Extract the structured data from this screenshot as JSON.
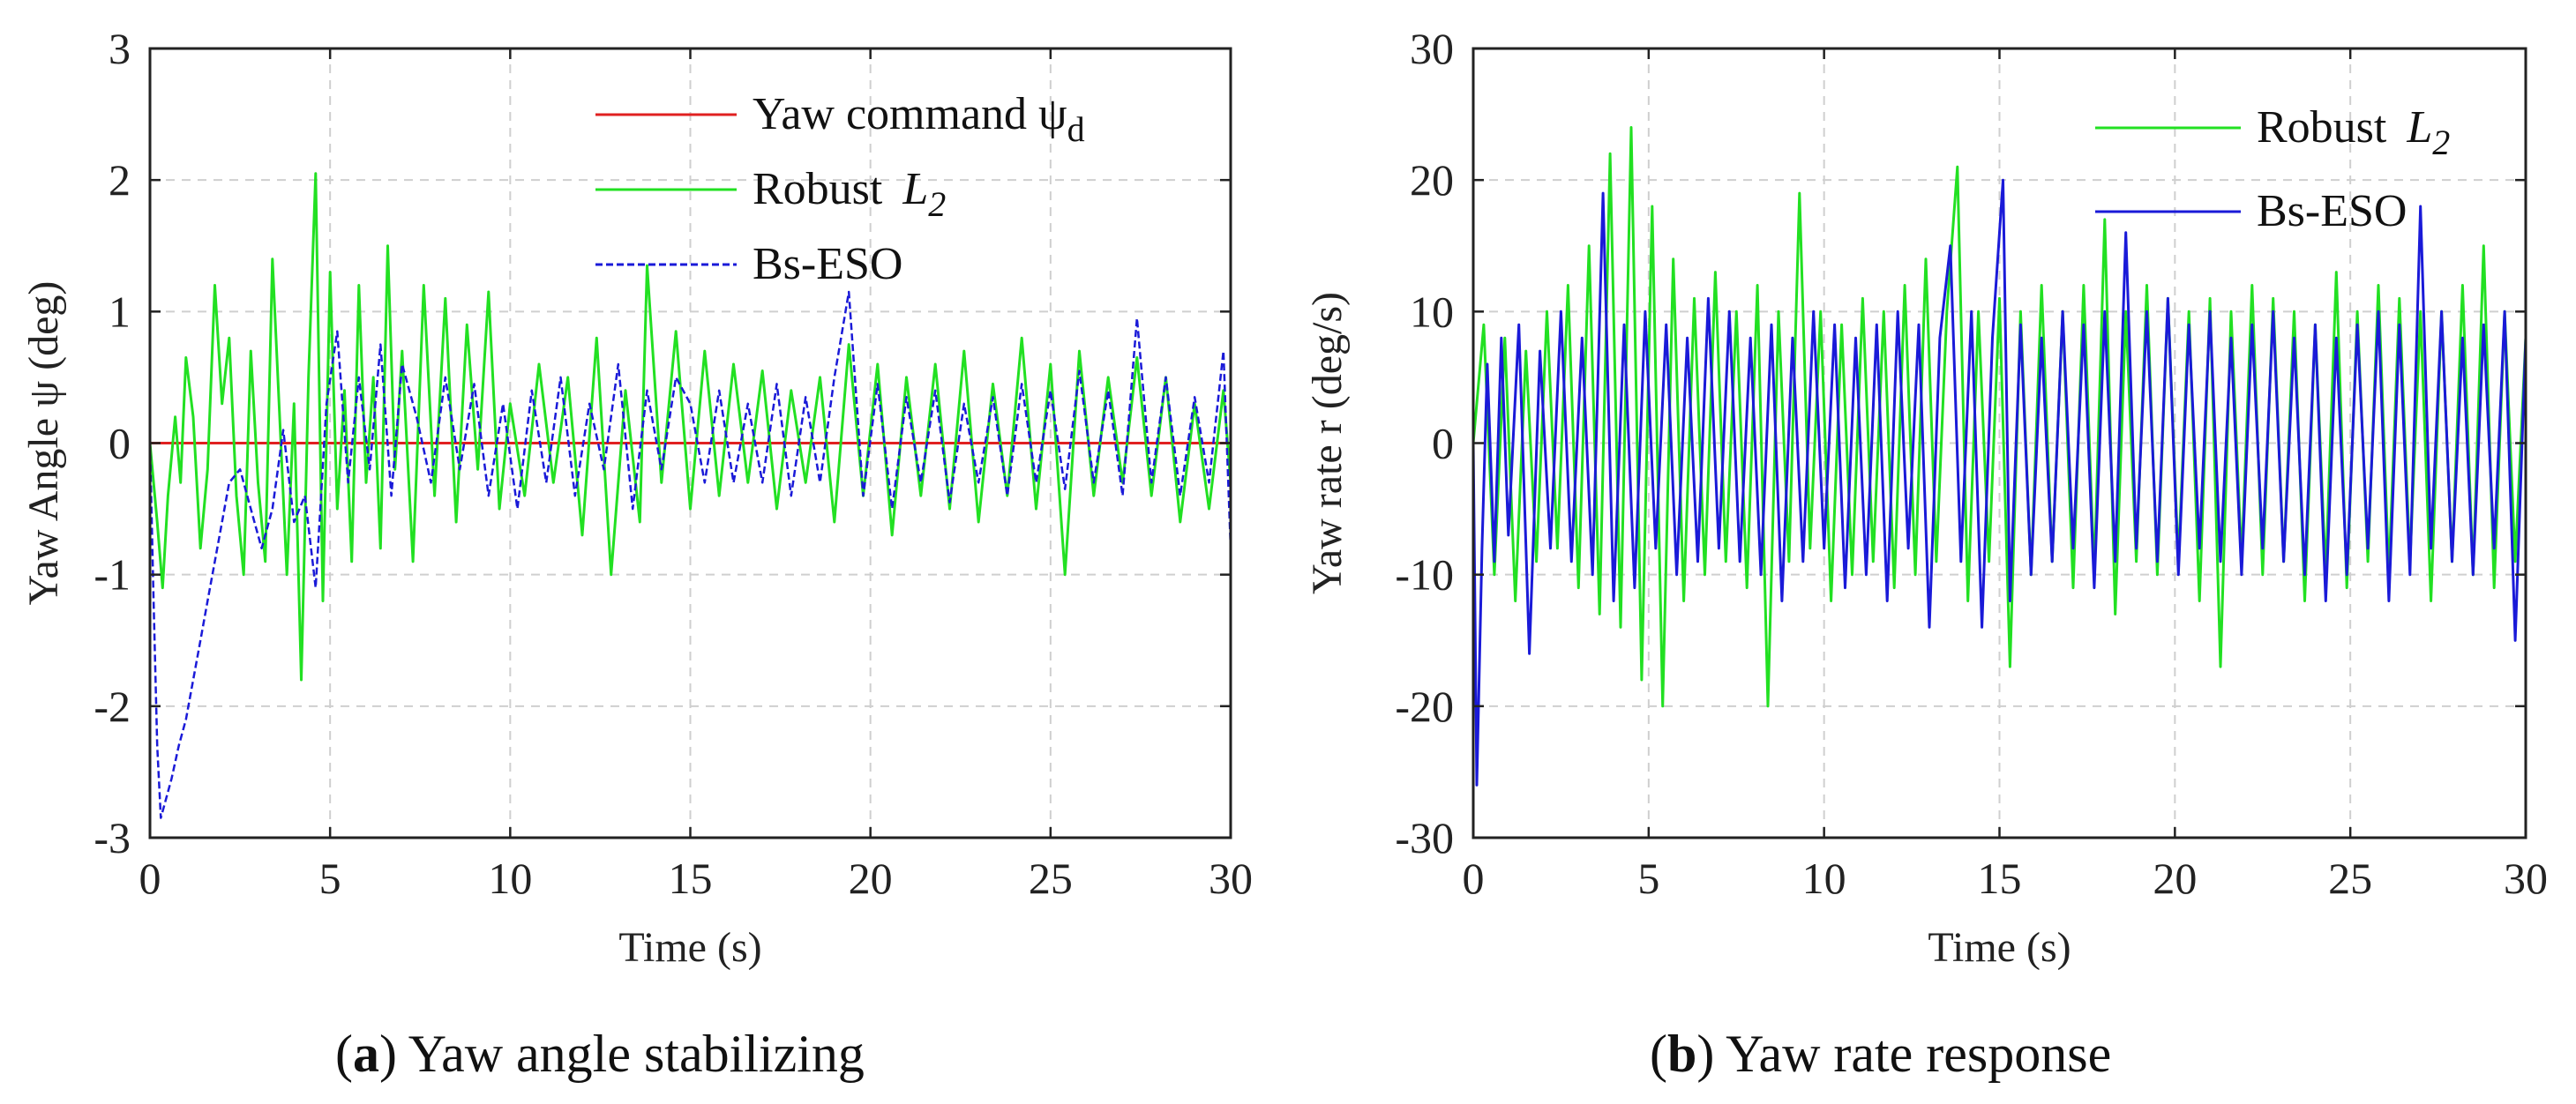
{
  "chart_data": [
    {
      "type": "line",
      "xlabel": "Time (s)",
      "ylabel": "Yaw Angle ψ (deg)",
      "xlim": [
        0,
        30
      ],
      "ylim": [
        -3,
        3
      ],
      "xticks": [
        "0",
        "5",
        "10",
        "15",
        "20",
        "25",
        "30"
      ],
      "yticks": [
        "-3",
        "-2",
        "-1",
        "0",
        "1",
        "2",
        "3"
      ],
      "grid": true,
      "legend_position": "top-right",
      "caption_label": "(a)",
      "caption_text": "Yaw angle stabilizing",
      "series": [
        {
          "name": "Yaw command ψd",
          "legend_main": "Yaw command ψ",
          "legend_sub": "d",
          "color": "#e02020",
          "style": "solid",
          "x": [
            0,
            30
          ],
          "y": [
            0,
            0
          ]
        },
        {
          "name": "Robust L2",
          "legend_main": "Robust ",
          "legend_italic": "L",
          "legend_sub": "2",
          "color": "#22e022",
          "style": "solid",
          "x": [
            0,
            0.2,
            0.35,
            0.5,
            0.7,
            0.85,
            1.0,
            1.2,
            1.4,
            1.6,
            1.8,
            2.0,
            2.2,
            2.4,
            2.6,
            2.8,
            3.0,
            3.2,
            3.4,
            3.6,
            3.8,
            4.0,
            4.2,
            4.4,
            4.6,
            4.8,
            5.0,
            5.2,
            5.4,
            5.6,
            5.8,
            6.0,
            6.2,
            6.4,
            6.6,
            6.8,
            7.0,
            7.3,
            7.6,
            7.9,
            8.2,
            8.5,
            8.8,
            9.1,
            9.4,
            9.7,
            10.0,
            10.4,
            10.8,
            11.2,
            11.6,
            12.0,
            12.4,
            12.8,
            13.2,
            13.6,
            13.8,
            14.2,
            14.6,
            15.0,
            15.4,
            15.8,
            16.2,
            16.6,
            17.0,
            17.4,
            17.8,
            18.2,
            18.6,
            19.0,
            19.4,
            19.8,
            20.2,
            20.6,
            21.0,
            21.4,
            21.8,
            22.2,
            22.6,
            23.0,
            23.4,
            23.8,
            24.2,
            24.6,
            25.0,
            25.4,
            25.8,
            26.2,
            26.6,
            27.0,
            27.4,
            27.8,
            28.2,
            28.6,
            29.0,
            29.4,
            29.8,
            30.0
          ],
          "y": [
            0,
            -0.6,
            -1.1,
            -0.4,
            0.2,
            -0.3,
            0.65,
            0.2,
            -0.8,
            -0.2,
            1.2,
            0.3,
            0.8,
            -0.4,
            -1.0,
            0.7,
            -0.3,
            -0.9,
            1.4,
            0.2,
            -1.0,
            0.3,
            -1.8,
            0.5,
            2.05,
            -1.2,
            1.3,
            -0.5,
            0.4,
            -0.9,
            1.2,
            -0.3,
            0.5,
            -0.8,
            1.5,
            -0.2,
            0.7,
            -0.9,
            1.2,
            -0.4,
            1.1,
            -0.6,
            0.9,
            -0.2,
            1.15,
            -0.5,
            0.3,
            -0.4,
            0.6,
            -0.3,
            0.5,
            -0.7,
            0.8,
            -1.0,
            0.4,
            -0.6,
            1.35,
            -0.3,
            0.85,
            -0.5,
            0.7,
            -0.4,
            0.6,
            -0.3,
            0.55,
            -0.5,
            0.4,
            -0.3,
            0.5,
            -0.6,
            0.75,
            -0.4,
            0.6,
            -0.7,
            0.5,
            -0.4,
            0.6,
            -0.5,
            0.7,
            -0.6,
            0.45,
            -0.4,
            0.8,
            -0.5,
            0.6,
            -1.0,
            0.7,
            -0.4,
            0.5,
            -0.3,
            0.65,
            -0.4,
            0.5,
            -0.6,
            0.3,
            -0.5,
            0.4,
            -0.3
          ]
        },
        {
          "name": "Bs-ESO",
          "legend_main": "Bs-ESO",
          "color": "#1a1ad8",
          "style": "dashed",
          "x": [
            0,
            0.1,
            0.2,
            0.3,
            0.45,
            0.6,
            0.8,
            1.0,
            1.2,
            1.4,
            1.6,
            1.8,
            2.0,
            2.2,
            2.5,
            2.8,
            3.1,
            3.4,
            3.7,
            4.0,
            4.3,
            4.6,
            4.9,
            5.2,
            5.5,
            5.8,
            6.1,
            6.4,
            6.7,
            7.0,
            7.4,
            7.8,
            8.2,
            8.6,
            9.0,
            9.4,
            9.8,
            10.2,
            10.6,
            11.0,
            11.4,
            11.8,
            12.2,
            12.6,
            13.0,
            13.4,
            13.8,
            14.2,
            14.6,
            15.0,
            15.4,
            15.8,
            16.2,
            16.6,
            17.0,
            17.4,
            17.8,
            18.2,
            18.6,
            19.0,
            19.4,
            19.8,
            20.2,
            20.6,
            21.0,
            21.4,
            21.8,
            22.2,
            22.6,
            23.0,
            23.4,
            23.8,
            24.2,
            24.6,
            25.0,
            25.4,
            25.8,
            26.2,
            26.6,
            27.0,
            27.4,
            27.8,
            28.2,
            28.6,
            29.0,
            29.4,
            29.8,
            30.0
          ],
          "y": [
            0,
            -1.2,
            -2.3,
            -2.85,
            -2.7,
            -2.55,
            -2.3,
            -2.1,
            -1.8,
            -1.5,
            -1.2,
            -0.9,
            -0.6,
            -0.3,
            -0.2,
            -0.5,
            -0.8,
            -0.5,
            0.1,
            -0.6,
            -0.4,
            -1.1,
            0.3,
            0.85,
            -0.3,
            0.5,
            -0.2,
            0.75,
            -0.4,
            0.6,
            0.2,
            -0.3,
            0.5,
            -0.2,
            0.45,
            -0.4,
            0.3,
            -0.5,
            0.4,
            -0.3,
            0.5,
            -0.4,
            0.3,
            -0.2,
            0.6,
            -0.5,
            0.4,
            -0.2,
            0.5,
            0.3,
            -0.3,
            0.4,
            -0.3,
            0.3,
            -0.3,
            0.45,
            -0.4,
            0.35,
            -0.3,
            0.5,
            1.15,
            -0.4,
            0.45,
            -0.5,
            0.35,
            -0.3,
            0.4,
            -0.45,
            0.3,
            -0.3,
            0.35,
            -0.4,
            0.45,
            -0.3,
            0.4,
            -0.35,
            0.55,
            -0.3,
            0.4,
            -0.4,
            0.95,
            -0.3,
            0.5,
            -0.4,
            0.35,
            -0.3,
            0.7,
            -0.8
          ]
        }
      ]
    },
    {
      "type": "line",
      "xlabel": "Time (s)",
      "ylabel": "Yaw rate r (deg/s)",
      "xlim": [
        0,
        30
      ],
      "ylim": [
        -30,
        30
      ],
      "xticks": [
        "0",
        "5",
        "10",
        "15",
        "20",
        "25",
        "30"
      ],
      "yticks": [
        "-30",
        "-20",
        "-10",
        "0",
        "10",
        "20",
        "30"
      ],
      "grid": true,
      "legend_position": "top-right",
      "caption_label": "(b)",
      "caption_text": "Yaw rate response",
      "series": [
        {
          "name": "Robust L2",
          "legend_main": "Robust ",
          "legend_italic": "L",
          "legend_sub": "2",
          "color": "#22e022",
          "style": "solid",
          "x": [
            0,
            0.3,
            0.6,
            0.9,
            1.2,
            1.5,
            1.8,
            2.1,
            2.4,
            2.7,
            3.0,
            3.3,
            3.6,
            3.9,
            4.2,
            4.5,
            4.8,
            5.1,
            5.4,
            5.7,
            6.0,
            6.3,
            6.6,
            6.9,
            7.2,
            7.5,
            7.8,
            8.1,
            8.4,
            8.7,
            9.0,
            9.3,
            9.6,
            9.9,
            10.2,
            10.5,
            10.8,
            11.1,
            11.4,
            11.7,
            12.0,
            12.3,
            12.6,
            12.9,
            13.2,
            13.5,
            13.8,
            14.1,
            14.4,
            14.7,
            15.0,
            15.3,
            15.6,
            15.9,
            16.2,
            16.5,
            16.8,
            17.1,
            17.4,
            17.7,
            18.0,
            18.3,
            18.6,
            18.9,
            19.2,
            19.5,
            19.8,
            20.1,
            20.4,
            20.7,
            21.0,
            21.3,
            21.6,
            21.9,
            22.2,
            22.5,
            22.8,
            23.1,
            23.4,
            23.7,
            24.0,
            24.3,
            24.6,
            24.9,
            25.2,
            25.5,
            25.8,
            26.1,
            26.4,
            26.7,
            27.0,
            27.3,
            27.6,
            27.9,
            28.2,
            28.5,
            28.8,
            29.1,
            29.4,
            29.7,
            30.0
          ],
          "y": [
            0,
            9,
            -10,
            8,
            -12,
            7,
            -9,
            10,
            -8,
            12,
            -11,
            15,
            -13,
            22,
            -14,
            24,
            -18,
            18,
            -20,
            14,
            -12,
            11,
            -10,
            13,
            -9,
            10,
            -11,
            12,
            -20,
            10,
            -9,
            19,
            -8,
            10,
            -12,
            9,
            -10,
            11,
            -9,
            10,
            -11,
            12,
            -10,
            14,
            -9,
            10,
            21,
            -12,
            10,
            -9,
            11,
            -17,
            10,
            -10,
            12,
            -9,
            10,
            -11,
            12,
            -10,
            17,
            -13,
            10,
            -9,
            12,
            -10,
            11,
            -9,
            10,
            -12,
            11,
            -17,
            10,
            -9,
            12,
            -10,
            11,
            -9,
            10,
            -12,
            9,
            -10,
            13,
            -11,
            10,
            -9,
            12,
            -10,
            11,
            -9,
            10,
            -12,
            10,
            -9,
            12,
            -10,
            15,
            -11,
            10,
            -9,
            8
          ]
        },
        {
          "name": "Bs-ESO",
          "legend_main": "Bs-ESO",
          "color": "#1a1ad8",
          "style": "solid",
          "x": [
            0,
            0.1,
            0.25,
            0.4,
            0.6,
            0.8,
            1.0,
            1.3,
            1.6,
            1.9,
            2.2,
            2.5,
            2.8,
            3.1,
            3.4,
            3.7,
            4.0,
            4.3,
            4.6,
            4.9,
            5.2,
            5.5,
            5.8,
            6.1,
            6.4,
            6.7,
            7.0,
            7.3,
            7.6,
            7.9,
            8.2,
            8.5,
            8.8,
            9.1,
            9.4,
            9.7,
            10.0,
            10.3,
            10.6,
            10.9,
            11.2,
            11.5,
            11.8,
            12.1,
            12.4,
            12.7,
            13.0,
            13.3,
            13.6,
            13.9,
            14.2,
            14.5,
            14.8,
            15.1,
            15.3,
            15.6,
            15.9,
            16.2,
            16.5,
            16.8,
            17.1,
            17.4,
            17.7,
            18.0,
            18.3,
            18.6,
            18.9,
            19.2,
            19.5,
            19.8,
            20.1,
            20.4,
            20.7,
            21.0,
            21.3,
            21.6,
            21.9,
            22.2,
            22.5,
            22.8,
            23.1,
            23.4,
            23.7,
            24.0,
            24.3,
            24.6,
            24.9,
            25.2,
            25.5,
            25.8,
            26.1,
            26.4,
            26.7,
            27.0,
            27.3,
            27.6,
            27.9,
            28.2,
            28.5,
            28.8,
            29.1,
            29.4,
            29.7,
            30.0
          ],
          "y": [
            0,
            -26,
            -8,
            6,
            -9,
            8,
            -7,
            9,
            -16,
            7,
            -8,
            10,
            -9,
            8,
            -10,
            19,
            -12,
            9,
            -11,
            10,
            -8,
            9,
            -10,
            8,
            -9,
            11,
            -8,
            10,
            -9,
            8,
            -10,
            9,
            -12,
            8,
            -9,
            10,
            -8,
            9,
            -11,
            8,
            -10,
            9,
            -12,
            10,
            -8,
            9,
            -14,
            8,
            15,
            -9,
            10,
            -14,
            8,
            20,
            -12,
            9,
            -10,
            8,
            -9,
            10,
            -8,
            9,
            -11,
            10,
            -9,
            16,
            -8,
            10,
            -9,
            11,
            -10,
            9,
            -8,
            10,
            -9,
            8,
            -10,
            9,
            -8,
            10,
            -9,
            8,
            -10,
            9,
            -12,
            8,
            -10,
            9,
            -8,
            10,
            -12,
            9,
            -10,
            18,
            -8,
            10,
            -9,
            8,
            -10,
            9,
            -8,
            10,
            -15,
            8
          ]
        }
      ]
    }
  ]
}
